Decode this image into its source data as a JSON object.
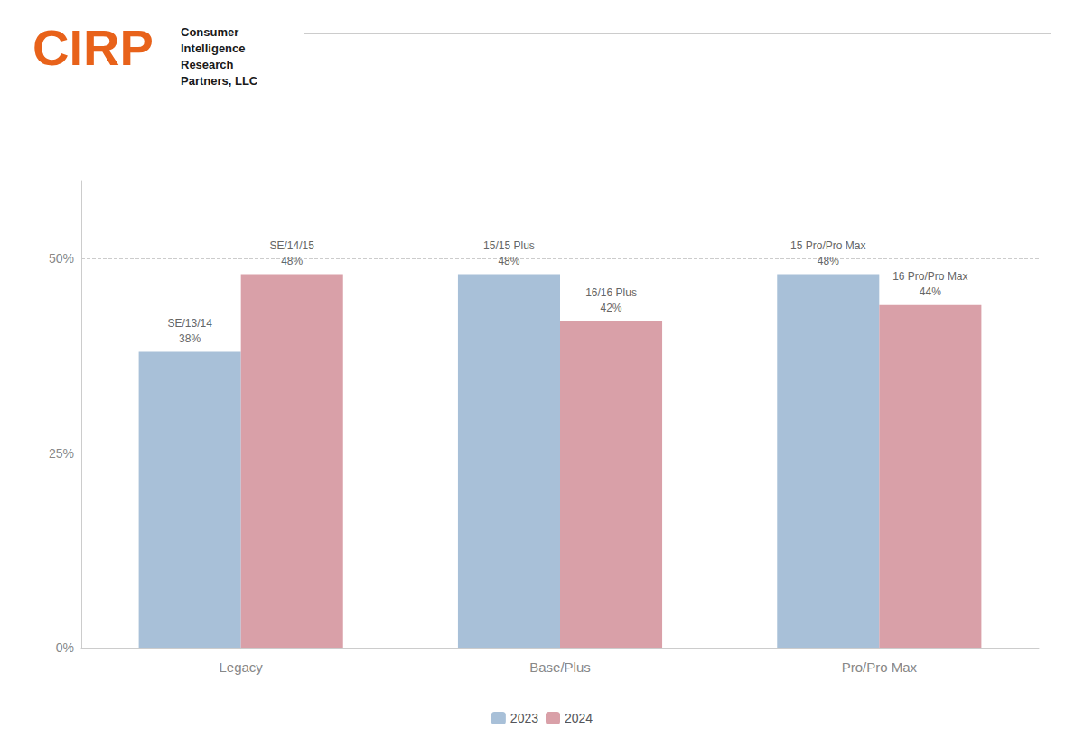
{
  "chart_data": {
    "type": "bar",
    "categories": [
      "Legacy",
      "Base/Plus",
      "Pro/Pro Max"
    ],
    "series": [
      {
        "name": "2023",
        "color": "#a8c0d8",
        "values": [
          38,
          48,
          48
        ],
        "value_labels": [
          "SE/13/14\n38%",
          "15/15 Plus\n48%",
          "15 Pro/Pro Max\n48%"
        ]
      },
      {
        "name": "2024",
        "color": "#d9a0a8",
        "values": [
          48,
          42,
          44
        ],
        "value_labels": [
          "SE/14/15\n48%",
          "16/16 Plus\n42%",
          "16 Pro/Pro Max\n44%"
        ]
      }
    ],
    "ylim": [
      0,
      60
    ],
    "yticks": [
      {
        "value": 0,
        "label": "0%"
      },
      {
        "value": 25,
        "label": "25%"
      },
      {
        "value": 50,
        "label": "50%"
      }
    ],
    "grid": true,
    "legend": "bottom",
    "data_labels": true,
    "annotations": [
      {
        "text": "CIRP",
        "color": "#E8621A"
      },
      {
        "text": "Consumer\nIntelligence\nResearch\nPartners, LLC",
        "color": "#1a1a1a"
      }
    ]
  }
}
